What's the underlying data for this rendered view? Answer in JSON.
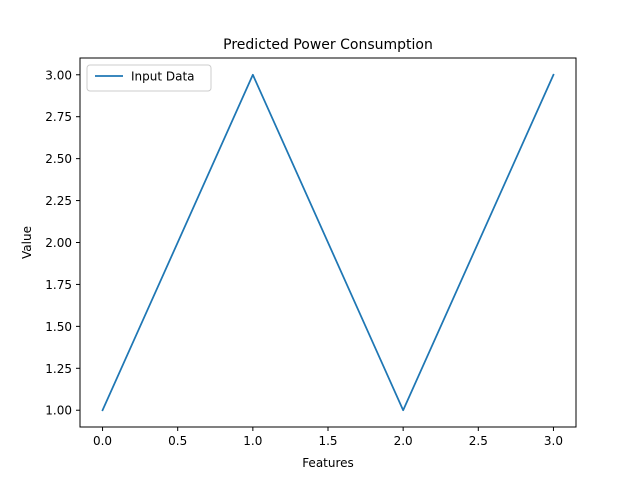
{
  "chart_data": {
    "type": "line",
    "title": "Predicted Power Consumption",
    "xlabel": "Features",
    "ylabel": "Value",
    "xlim": [
      -0.15,
      3.15
    ],
    "ylim": [
      0.9,
      3.1
    ],
    "x_ticks": [
      0.0,
      0.5,
      1.0,
      1.5,
      2.0,
      2.5,
      3.0
    ],
    "x_tick_labels": [
      "0.0",
      "0.5",
      "1.0",
      "1.5",
      "2.0",
      "2.5",
      "3.0"
    ],
    "y_ticks": [
      1.0,
      1.25,
      1.5,
      1.75,
      2.0,
      2.25,
      2.5,
      2.75,
      3.0
    ],
    "y_tick_labels": [
      "1.00",
      "1.25",
      "1.50",
      "1.75",
      "2.00",
      "2.25",
      "2.50",
      "2.75",
      "3.00"
    ],
    "grid": false,
    "legend_position": "top-left",
    "series": [
      {
        "name": "Input Data",
        "color": "#1f77b4",
        "x": [
          0,
          1,
          2,
          3
        ],
        "values": [
          1,
          3,
          1,
          3
        ]
      }
    ]
  }
}
